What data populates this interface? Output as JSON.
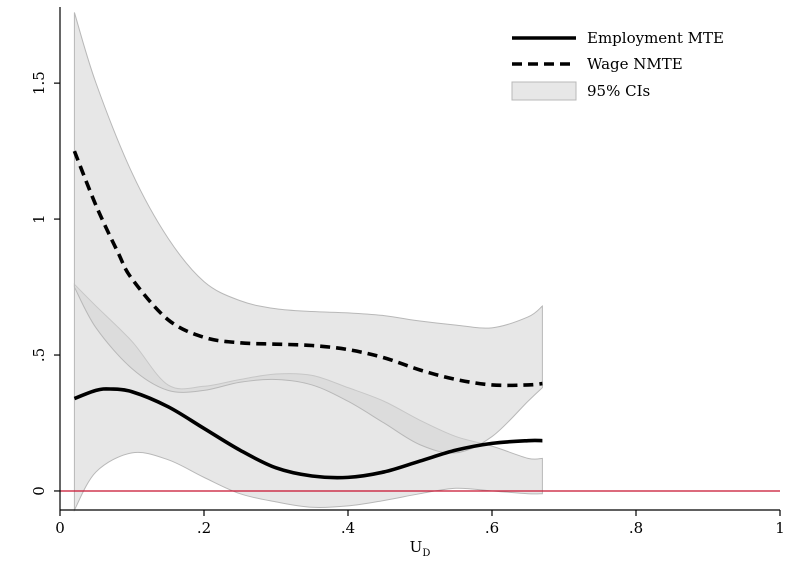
{
  "chart_data": {
    "type": "line",
    "title": "",
    "xlabel": "U",
    "xlabel_subscript": "D",
    "ylabel": "",
    "xlim": [
      0,
      1
    ],
    "ylim": [
      -0.07,
      1.78
    ],
    "grid": false,
    "legend_position": "top-right",
    "x_ticks": [
      0,
      0.2,
      0.4,
      0.6,
      0.8,
      1
    ],
    "x_tick_labels": [
      "0",
      ".2",
      ".4",
      ".6",
      ".8",
      "1"
    ],
    "y_ticks": [
      0,
      0.5,
      1,
      1.5
    ],
    "y_tick_labels": [
      "0",
      ".5",
      "1",
      "1.5"
    ],
    "reference_line": {
      "y": 0,
      "color": "#c8102e"
    },
    "series": [
      {
        "name": "Employment MTE",
        "style": "solid",
        "color": "#000000",
        "x": [
          0.02,
          0.05,
          0.07,
          0.1,
          0.15,
          0.2,
          0.25,
          0.3,
          0.35,
          0.4,
          0.45,
          0.5,
          0.55,
          0.6,
          0.65,
          0.67
        ],
        "y": [
          0.34,
          0.37,
          0.375,
          0.365,
          0.31,
          0.23,
          0.15,
          0.085,
          0.055,
          0.05,
          0.07,
          0.11,
          0.15,
          0.175,
          0.185,
          0.185
        ]
      },
      {
        "name": "Wage NMTE",
        "style": "dashed",
        "color": "#000000",
        "x": [
          0.02,
          0.05,
          0.08,
          0.1,
          0.15,
          0.2,
          0.25,
          0.3,
          0.35,
          0.4,
          0.45,
          0.5,
          0.55,
          0.6,
          0.65,
          0.67
        ],
        "y": [
          1.25,
          1.05,
          0.88,
          0.78,
          0.63,
          0.565,
          0.545,
          0.54,
          0.535,
          0.52,
          0.49,
          0.445,
          0.41,
          0.39,
          0.39,
          0.395
        ]
      }
    ],
    "bands": [
      {
        "name": "95% CIs",
        "color": "#d3d3d3",
        "x": [
          0.02,
          0.05,
          0.1,
          0.15,
          0.2,
          0.25,
          0.3,
          0.35,
          0.4,
          0.45,
          0.5,
          0.55,
          0.6,
          0.65,
          0.67
        ],
        "lower": [
          -0.07,
          0.07,
          0.14,
          0.115,
          0.05,
          -0.01,
          -0.04,
          -0.06,
          -0.055,
          -0.035,
          -0.01,
          0.01,
          0.0,
          -0.01,
          -0.01
        ],
        "upper": [
          0.76,
          0.68,
          0.55,
          0.39,
          0.385,
          0.41,
          0.43,
          0.425,
          0.38,
          0.33,
          0.26,
          0.2,
          0.165,
          0.12,
          0.12
        ]
      },
      {
        "name": "95% CIs",
        "color": "#d3d3d3",
        "x": [
          0.02,
          0.05,
          0.1,
          0.15,
          0.2,
          0.25,
          0.3,
          0.35,
          0.4,
          0.45,
          0.5,
          0.55,
          0.6,
          0.65,
          0.67
        ],
        "lower": [
          0.75,
          0.6,
          0.45,
          0.37,
          0.37,
          0.4,
          0.41,
          0.39,
          0.33,
          0.25,
          0.17,
          0.14,
          0.2,
          0.33,
          0.38
        ],
        "upper": [
          1.76,
          1.5,
          1.17,
          0.93,
          0.77,
          0.7,
          0.67,
          0.66,
          0.655,
          0.645,
          0.625,
          0.61,
          0.6,
          0.64,
          0.68
        ]
      }
    ],
    "legend": [
      {
        "label": "Employment MTE",
        "kind": "solid"
      },
      {
        "label": "Wage NMTE",
        "kind": "dashed"
      },
      {
        "label": "95% CIs",
        "kind": "band"
      }
    ]
  }
}
